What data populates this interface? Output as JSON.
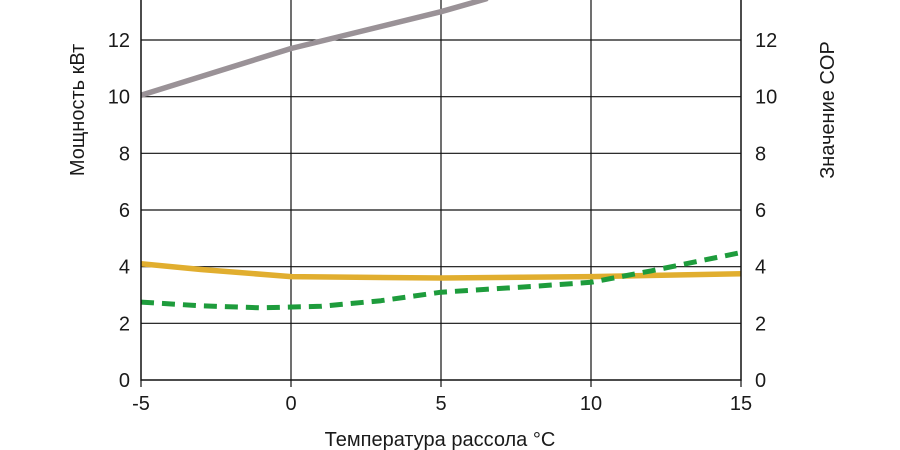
{
  "chart_data": {
    "type": "line",
    "title": "",
    "xlabel": "Температура рассола °C",
    "ylabel": "Мощность кВт",
    "y2label": "Значение COP",
    "xlim": [
      -5,
      15
    ],
    "ylim": [
      0,
      14
    ],
    "y2lim": [
      0,
      14
    ],
    "x_ticks": [
      -5,
      0,
      5,
      10,
      15
    ],
    "y_ticks": [
      0,
      2,
      4,
      6,
      8,
      10,
      12
    ],
    "y2_ticks": [
      0,
      2,
      4,
      6,
      8,
      10,
      12
    ],
    "grid": true,
    "legend": "none",
    "series": [
      {
        "color": "#9a9297",
        "style": "solid",
        "axis": "left",
        "points": [
          [
            -5,
            10.05
          ],
          [
            0,
            11.7
          ],
          [
            5,
            13.0
          ],
          [
            6.5,
            13.45
          ]
        ]
      },
      {
        "color": "#e1ae2f",
        "style": "solid",
        "axis": "left",
        "points": [
          [
            -5,
            4.1
          ],
          [
            -3,
            3.9
          ],
          [
            0,
            3.65
          ],
          [
            5,
            3.6
          ],
          [
            10,
            3.65
          ],
          [
            15,
            3.75
          ]
        ]
      },
      {
        "color": "#1e9c3c",
        "style": "dashed",
        "axis": "right",
        "points": [
          [
            -5,
            2.75
          ],
          [
            -3,
            2.62
          ],
          [
            -1,
            2.55
          ],
          [
            1,
            2.6
          ],
          [
            3,
            2.8
          ],
          [
            5,
            3.1
          ],
          [
            8,
            3.3
          ],
          [
            10,
            3.45
          ],
          [
            12,
            3.85
          ],
          [
            15,
            4.5
          ]
        ]
      }
    ]
  }
}
